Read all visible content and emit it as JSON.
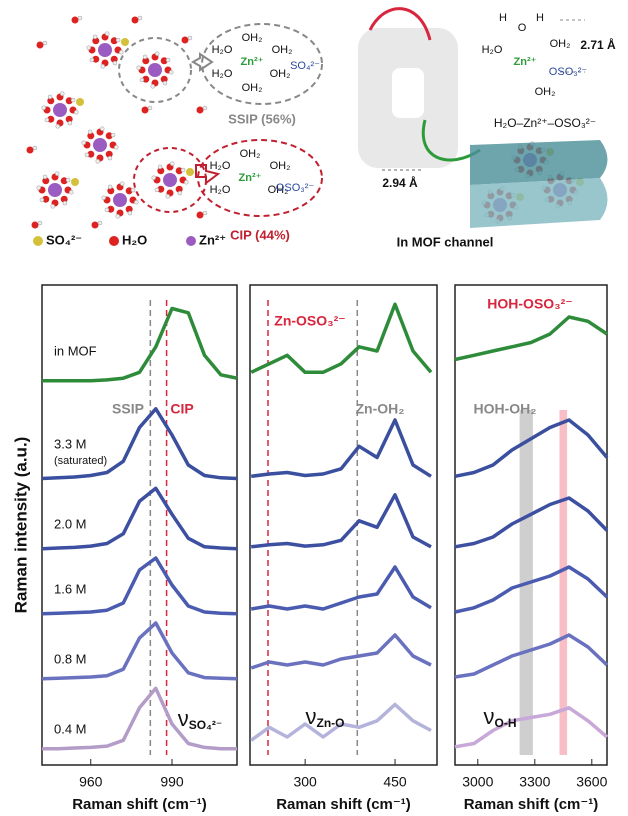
{
  "schematic": {
    "ssip_complex": {
      "ligands": [
        "H₂O",
        "OH₂",
        "OH₂",
        "H₂O",
        "OH₂",
        "OH₂"
      ],
      "center": "Zn²⁺",
      "anion": "SO₄²⁻"
    },
    "ssip_label": "SSIP (56%)",
    "cip_complex": {
      "ligands": [
        "H₂O",
        "OH₂",
        "OH₂",
        "H₂O",
        "OH₂"
      ],
      "center": "Zn²⁺",
      "anion": "OSO₃²⁻"
    },
    "cip_label": "CIP (44%)",
    "legend": [
      "SO₄²⁻",
      "H₂O",
      "Zn²⁺"
    ],
    "mof": {
      "title": "In MOF channel",
      "pore_distance": "2.94 Å",
      "h_distance": "2.71 Å",
      "complex_atoms": [
        "H",
        "H",
        "O",
        "H₂O",
        "OH₂",
        "OH₂"
      ],
      "center": "Zn²⁺",
      "anion": "OSO₃²⁻",
      "chain": "H₂O–Zn²⁺–OSO₃²⁻"
    }
  },
  "y_label": "Raman intensity (a.u.)",
  "row_note": "(saturated)",
  "chart_data": [
    {
      "type": "line",
      "xlabel": "Raman shift (cm⁻¹)",
      "xlim": [
        942,
        1014
      ],
      "xticks": [
        960,
        990
      ],
      "ylim": [
        0,
        1
      ],
      "x": [
        942,
        948,
        954,
        960,
        966,
        972,
        978,
        984,
        990,
        996,
        1002,
        1008,
        1014
      ],
      "series": [
        {
          "name": "in MOF",
          "color": "#2e8b3a",
          "values": [
            0.05,
            0.05,
            0.05,
            0.05,
            0.06,
            0.08,
            0.15,
            0.45,
            0.9,
            0.85,
            0.35,
            0.12,
            0.08
          ]
        },
        {
          "name": "3.3 M",
          "color": "#3a4f9e",
          "values": [
            0.02,
            0.03,
            0.04,
            0.06,
            0.1,
            0.25,
            0.7,
            0.95,
            0.6,
            0.2,
            0.06,
            0.03,
            0.02
          ]
        },
        {
          "name": "2.0 M",
          "color": "#3d4fa0",
          "values": [
            0.02,
            0.03,
            0.04,
            0.06,
            0.1,
            0.25,
            0.75,
            0.95,
            0.55,
            0.18,
            0.05,
            0.03,
            0.02
          ]
        },
        {
          "name": "1.6 M",
          "color": "#4a5bb0",
          "values": [
            0.02,
            0.03,
            0.04,
            0.05,
            0.08,
            0.2,
            0.75,
            0.95,
            0.5,
            0.15,
            0.05,
            0.03,
            0.02
          ]
        },
        {
          "name": "0.8 M",
          "color": "#6a72c0",
          "values": [
            0.02,
            0.03,
            0.04,
            0.05,
            0.07,
            0.18,
            0.7,
            0.95,
            0.45,
            0.12,
            0.04,
            0.03,
            0.02
          ]
        },
        {
          "name": "0.4 M",
          "color": "#b39cc8",
          "values": [
            0.02,
            0.02,
            0.03,
            0.04,
            0.06,
            0.15,
            0.65,
            0.95,
            0.4,
            0.1,
            0.04,
            0.02,
            0.02
          ]
        }
      ],
      "reference_lines": [
        {
          "value": 982,
          "color": "#888888"
        },
        {
          "value": 988,
          "color": "#d7263d"
        }
      ],
      "annotations": [
        {
          "text": "SSIP",
          "color": "#888888"
        },
        {
          "text": "CIP",
          "color": "#d7263d"
        }
      ],
      "symbol": {
        "main": "ν",
        "sub": "SO₄²⁻"
      }
    },
    {
      "type": "line",
      "xlabel": "Raman shift (cm⁻¹)",
      "xlim": [
        208,
        520
      ],
      "xticks": [
        300,
        450
      ],
      "ylim": [
        0,
        1
      ],
      "x": [
        210,
        240,
        270,
        300,
        330,
        360,
        390,
        420,
        450,
        480,
        510
      ],
      "series": [
        {
          "color": "#2e8b3a",
          "values": [
            0.15,
            0.25,
            0.35,
            0.15,
            0.15,
            0.25,
            0.45,
            0.4,
            0.95,
            0.4,
            0.15
          ]
        },
        {
          "color": "#3a4f9e",
          "values": [
            0.05,
            0.08,
            0.1,
            0.06,
            0.08,
            0.15,
            0.45,
            0.3,
            0.8,
            0.2,
            0.05
          ]
        },
        {
          "color": "#3d4fa0",
          "values": [
            0.05,
            0.08,
            0.1,
            0.06,
            0.08,
            0.15,
            0.45,
            0.35,
            0.85,
            0.2,
            0.05
          ]
        },
        {
          "color": "#4a5bb0",
          "values": [
            0.1,
            0.15,
            0.1,
            0.15,
            0.1,
            0.2,
            0.3,
            0.35,
            0.8,
            0.3,
            0.12
          ]
        },
        {
          "color": "#6a72c0",
          "values": [
            0.2,
            0.3,
            0.25,
            0.3,
            0.25,
            0.35,
            0.4,
            0.45,
            0.75,
            0.4,
            0.25
          ]
        },
        {
          "color": "#b3b3dc",
          "values": [
            0.15,
            0.35,
            0.2,
            0.4,
            0.2,
            0.4,
            0.35,
            0.45,
            0.7,
            0.45,
            0.3
          ]
        }
      ],
      "reference_lines": [
        {
          "value": 238,
          "color": "#d7263d"
        },
        {
          "value": 387,
          "color": "#888888"
        }
      ],
      "annotations": [
        {
          "text": "Zn-OSO₃²⁻",
          "color": "#d7263d"
        },
        {
          "text": "Zn-OH₂",
          "color": "#888888"
        }
      ],
      "symbol": {
        "main": "ν",
        "sub": "Zn-O"
      }
    },
    {
      "type": "line",
      "xlabel": "Raman shift (cm⁻¹)",
      "xlim": [
        2880,
        3680
      ],
      "xticks": [
        3000,
        3300,
        3600
      ],
      "ylim": [
        0,
        1
      ],
      "x": [
        2880,
        2980,
        3080,
        3180,
        3280,
        3380,
        3480,
        3580,
        3680
      ],
      "series": [
        {
          "color": "#2e8b3a",
          "values": [
            0.3,
            0.35,
            0.4,
            0.45,
            0.5,
            0.6,
            0.8,
            0.75,
            0.6
          ]
        },
        {
          "color": "#3a4f9e",
          "values": [
            0.05,
            0.1,
            0.2,
            0.4,
            0.55,
            0.7,
            0.8,
            0.6,
            0.3
          ]
        },
        {
          "color": "#3d4fa0",
          "values": [
            0.05,
            0.1,
            0.2,
            0.4,
            0.55,
            0.7,
            0.8,
            0.6,
            0.3
          ]
        },
        {
          "color": "#4a5bb0",
          "values": [
            0.05,
            0.12,
            0.25,
            0.45,
            0.55,
            0.65,
            0.8,
            0.6,
            0.3
          ]
        },
        {
          "color": "#6a72c0",
          "values": [
            0.05,
            0.1,
            0.25,
            0.4,
            0.5,
            0.6,
            0.75,
            0.55,
            0.25
          ]
        },
        {
          "color": "#c8a8d8",
          "values": [
            0.05,
            0.1,
            0.3,
            0.45,
            0.5,
            0.55,
            0.65,
            0.45,
            0.2
          ]
        }
      ],
      "bands": [
        {
          "from": 3220,
          "to": 3290,
          "color": "#bbbbbb"
        },
        {
          "from": 3430,
          "to": 3470,
          "color": "#f4a3ad"
        }
      ],
      "annotations": [
        {
          "text": "HOH-OSO₃²⁻",
          "color": "#d7263d"
        },
        {
          "text": "HOH-OH₂",
          "color": "#888888"
        }
      ],
      "symbol": {
        "main": "ν",
        "sub": "O-H"
      }
    }
  ]
}
